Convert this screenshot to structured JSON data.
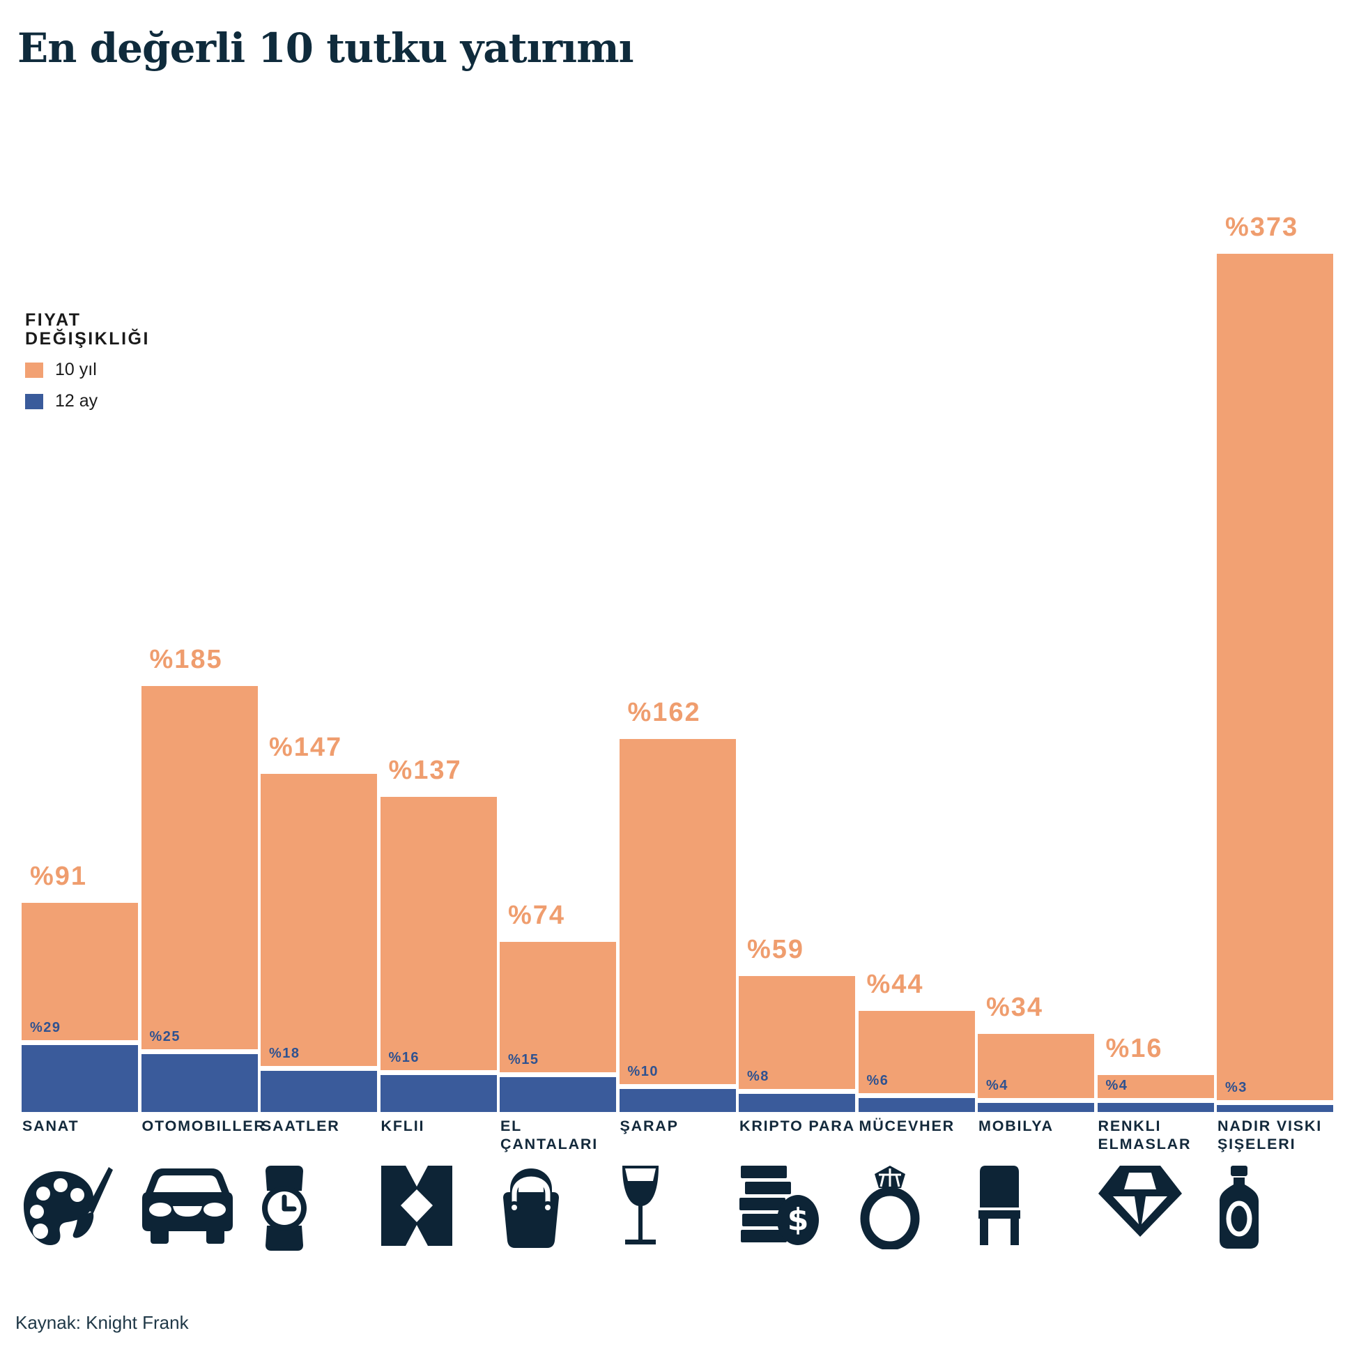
{
  "title": "En değerli 10 tutku yatırımı",
  "legend": {
    "title": "FIYAT\nDEĞIŞIKLIĞI",
    "items": [
      {
        "label": "10 yıl",
        "color": "#F2A173"
      },
      {
        "label": "12 ay",
        "color": "#3A5B9B"
      }
    ]
  },
  "source": "Kaynak: Knight Frank",
  "colors": {
    "orange_bar": "#F2A173",
    "orange_label": "#EF9D6E",
    "blue_bar": "#3A5B9B",
    "blue_label": "#2F5290",
    "navy": "#0D2436"
  },
  "chart_data": {
    "type": "bar",
    "title": "En değerli 10 tutku yatırımı",
    "value_prefix": "%",
    "unit": "percent",
    "legend_position": "upper-left",
    "grid": false,
    "ylim": [
      0,
      400
    ],
    "categories": [
      "SANAT",
      "OTOMOBILLER",
      "SAATLER",
      "KFLII",
      "EL ÇANTALARI",
      "ŞARAP",
      "KRIPTO PARA",
      "MÜCEVHER",
      "MOBILYA",
      "RENKLI ELMASLAR",
      "NADIR VISKI ŞIŞELERI"
    ],
    "series": [
      {
        "name": "10 yıl",
        "values": [
          91,
          185,
          147,
          137,
          74,
          162,
          59,
          44,
          34,
          16,
          373
        ]
      },
      {
        "name": "12 ay",
        "values": [
          29,
          25,
          18,
          16,
          15,
          10,
          8,
          6,
          4,
          4,
          3
        ]
      }
    ],
    "items": [
      {
        "label": "SANAT",
        "ten_year": 91,
        "twelve_month": 29,
        "icon": "palette-icon"
      },
      {
        "label": "OTOMOBILLER",
        "ten_year": 185,
        "twelve_month": 25,
        "icon": "car-icon"
      },
      {
        "label": "SAATLER",
        "ten_year": 147,
        "twelve_month": 18,
        "icon": "watch-icon"
      },
      {
        "label": "KFLII",
        "ten_year": 137,
        "twelve_month": 16,
        "icon": "kflii-logo-icon"
      },
      {
        "label": "EL ÇANTALARI",
        "ten_year": 74,
        "twelve_month": 15,
        "icon": "handbag-icon"
      },
      {
        "label": "ŞARAP",
        "ten_year": 162,
        "twelve_month": 10,
        "icon": "wine-glass-icon"
      },
      {
        "label": "KRIPTO PARA",
        "ten_year": 59,
        "twelve_month": 8,
        "icon": "coins-icon"
      },
      {
        "label": "MÜCEVHER",
        "ten_year": 44,
        "twelve_month": 6,
        "icon": "ring-icon"
      },
      {
        "label": "MOBILYA",
        "ten_year": 34,
        "twelve_month": 4,
        "icon": "chair-icon"
      },
      {
        "label": "RENKLI\nELMASLAR",
        "ten_year": 16,
        "twelve_month": 4,
        "icon": "diamond-icon"
      },
      {
        "label": "NADIR VISKI\nŞIŞELERI",
        "ten_year": 373,
        "twelve_month": 3,
        "icon": "whisky-bottle-icon"
      }
    ]
  }
}
